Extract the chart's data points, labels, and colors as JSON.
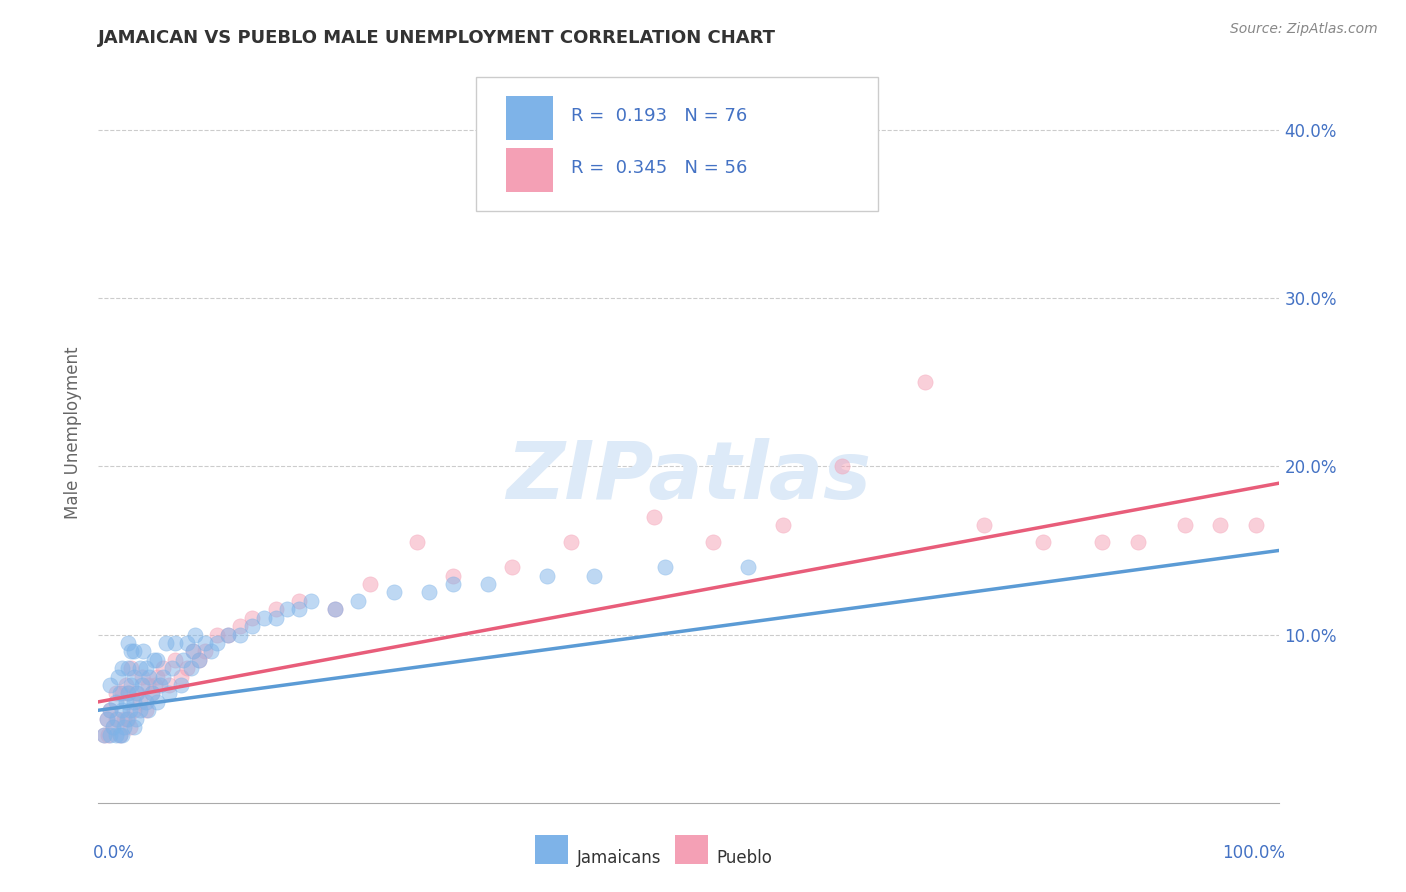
{
  "title": "JAMAICAN VS PUEBLO MALE UNEMPLOYMENT CORRELATION CHART",
  "source": "Source: ZipAtlas.com",
  "ylabel": "Male Unemployment",
  "y_ticks": [
    0.1,
    0.2,
    0.3,
    0.4
  ],
  "y_tick_labels": [
    "10.0%",
    "20.0%",
    "30.0%",
    "40.0%"
  ],
  "xlim": [
    0.0,
    1.0
  ],
  "ylim": [
    0.0,
    0.44
  ],
  "R_jamaican": "0.193",
  "N_jamaican": "76",
  "R_pueblo": "0.345",
  "N_pueblo": "56",
  "color_jamaican": "#7EB3E8",
  "color_pueblo": "#F4A0B5",
  "blue_text": "#4472c4",
  "title_color": "#333333",
  "watermark_color": "#ddeaf8",
  "scatter_jamaican_x": [
    0.005,
    0.007,
    0.01,
    0.01,
    0.01,
    0.012,
    0.015,
    0.015,
    0.016,
    0.017,
    0.018,
    0.018,
    0.02,
    0.02,
    0.02,
    0.022,
    0.023,
    0.024,
    0.025,
    0.025,
    0.025,
    0.027,
    0.028,
    0.028,
    0.03,
    0.03,
    0.03,
    0.03,
    0.032,
    0.033,
    0.035,
    0.035,
    0.037,
    0.038,
    0.04,
    0.04,
    0.042,
    0.043,
    0.045,
    0.047,
    0.05,
    0.05,
    0.052,
    0.055,
    0.057,
    0.06,
    0.062,
    0.065,
    0.07,
    0.072,
    0.075,
    0.078,
    0.08,
    0.082,
    0.085,
    0.09,
    0.095,
    0.1,
    0.11,
    0.12,
    0.13,
    0.14,
    0.15,
    0.16,
    0.17,
    0.18,
    0.2,
    0.22,
    0.25,
    0.28,
    0.3,
    0.33,
    0.38,
    0.42,
    0.48,
    0.55
  ],
  "scatter_jamaican_y": [
    0.04,
    0.05,
    0.04,
    0.055,
    0.07,
    0.045,
    0.04,
    0.06,
    0.05,
    0.075,
    0.04,
    0.065,
    0.04,
    0.055,
    0.08,
    0.045,
    0.06,
    0.05,
    0.065,
    0.08,
    0.095,
    0.055,
    0.07,
    0.09,
    0.045,
    0.06,
    0.075,
    0.09,
    0.05,
    0.065,
    0.055,
    0.08,
    0.07,
    0.09,
    0.06,
    0.08,
    0.055,
    0.075,
    0.065,
    0.085,
    0.06,
    0.085,
    0.07,
    0.075,
    0.095,
    0.065,
    0.08,
    0.095,
    0.07,
    0.085,
    0.095,
    0.08,
    0.09,
    0.1,
    0.085,
    0.095,
    0.09,
    0.095,
    0.1,
    0.1,
    0.105,
    0.11,
    0.11,
    0.115,
    0.115,
    0.12,
    0.115,
    0.12,
    0.125,
    0.125,
    0.13,
    0.13,
    0.135,
    0.135,
    0.14,
    0.14
  ],
  "scatter_pueblo_x": [
    0.005,
    0.007,
    0.008,
    0.01,
    0.012,
    0.015,
    0.015,
    0.018,
    0.02,
    0.022,
    0.023,
    0.025,
    0.025,
    0.027,
    0.028,
    0.03,
    0.032,
    0.035,
    0.037,
    0.04,
    0.042,
    0.045,
    0.048,
    0.05,
    0.055,
    0.06,
    0.065,
    0.07,
    0.075,
    0.08,
    0.085,
    0.09,
    0.1,
    0.11,
    0.12,
    0.13,
    0.15,
    0.17,
    0.2,
    0.23,
    0.27,
    0.3,
    0.35,
    0.4,
    0.47,
    0.52,
    0.58,
    0.63,
    0.7,
    0.75,
    0.8,
    0.85,
    0.88,
    0.92,
    0.95,
    0.98
  ],
  "scatter_pueblo_y": [
    0.04,
    0.05,
    0.04,
    0.055,
    0.045,
    0.05,
    0.065,
    0.04,
    0.065,
    0.05,
    0.07,
    0.05,
    0.065,
    0.045,
    0.08,
    0.055,
    0.065,
    0.06,
    0.075,
    0.055,
    0.07,
    0.065,
    0.07,
    0.075,
    0.08,
    0.07,
    0.085,
    0.075,
    0.08,
    0.09,
    0.085,
    0.09,
    0.1,
    0.1,
    0.105,
    0.11,
    0.115,
    0.12,
    0.115,
    0.13,
    0.155,
    0.135,
    0.14,
    0.155,
    0.17,
    0.155,
    0.165,
    0.2,
    0.25,
    0.165,
    0.155,
    0.155,
    0.155,
    0.165,
    0.165,
    0.165
  ]
}
